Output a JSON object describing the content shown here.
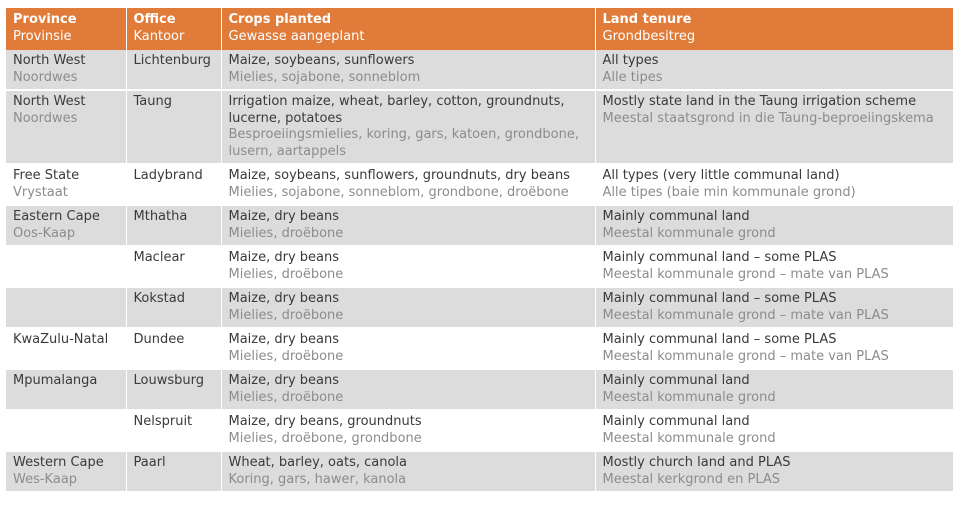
{
  "header": {
    "province_en": "Province",
    "province_af": "Provinsie",
    "office_en": "Office",
    "office_af": "Kantoor",
    "crops_en": "Crops planted",
    "crops_af": "Gewasse aangeplant",
    "tenure_en": "Land tenure",
    "tenure_af": "Grondbesitreg"
  },
  "rows": [
    {
      "province_en": "North West",
      "province_af": "Noordwes",
      "office": "Lichtenburg",
      "crops_en": "Maize, soybeans, sunflowers",
      "crops_af": "Mielies, sojabone, sonneblom",
      "tenure_en": "All types",
      "tenure_af": "Alle tipes"
    },
    {
      "province_en": "North West",
      "province_af": "Noordwes",
      "office": "Taung",
      "crops_en": "Irrigation maize, wheat, barley, cotton, groundnuts, lucerne, potatoes",
      "crops_af": "Besproeiingsmielies, koring, gars, katoen, grondbone, lusern, aartappels",
      "tenure_en": "Mostly state land in the Taung irrigation scheme",
      "tenure_af": "Meestal staatsgrond in die Taung-beproeiingskema"
    },
    {
      "province_en": "Free State",
      "province_af": "Vrystaat",
      "office": "Ladybrand",
      "crops_en": "Maize, soybeans, sunflowers, groundnuts, dry beans",
      "crops_af": "Mielies, sojabone, sonneblom, grondbone, droëbone",
      "tenure_en": "All types (very little communal land)",
      "tenure_af": "Alle tipes (baie min kommunale grond)"
    },
    {
      "province_en": "Eastern Cape",
      "province_af": "Oos-Kaap",
      "office": "Mthatha",
      "crops_en": "Maize, dry beans",
      "crops_af": "Mielies, droëbone",
      "tenure_en": "Mainly communal land",
      "tenure_af": "Meestal kommunale grond"
    },
    {
      "province_en": "",
      "province_af": "",
      "office": "Maclear",
      "crops_en": "Maize, dry beans",
      "crops_af": "Mielies, droëbone",
      "tenure_en": "Mainly communal land – some PLAS",
      "tenure_af": "Meestal kommunale grond – mate van PLAS"
    },
    {
      "province_en": "",
      "province_af": "",
      "office": "Kokstad",
      "crops_en": "Maize, dry beans",
      "crops_af": "Mielies, droëbone",
      "tenure_en": "Mainly communal land – some PLAS",
      "tenure_af": "Meestal kommunale grond – mate van PLAS"
    },
    {
      "province_en": "KwaZulu-Natal",
      "province_af": "",
      "office": "Dundee",
      "crops_en": "Maize, dry beans",
      "crops_af": "Mielies, droëbone",
      "tenure_en": "Mainly communal land – some PLAS",
      "tenure_af": "Meestal kommunale grond – mate van PLAS"
    },
    {
      "province_en": "Mpumalanga",
      "province_af": "",
      "office": "Louwsburg",
      "crops_en": "Maize, dry beans",
      "crops_af": "Mielies, droëbone",
      "tenure_en": "Mainly communal land",
      "tenure_af": "Meestal kommunale grond"
    },
    {
      "province_en": "",
      "province_af": "",
      "office": "Nelspruit",
      "crops_en": "Maize, dry beans, groundnuts",
      "crops_af": "Mielies, droëbone, grondbone",
      "tenure_en": "Mainly communal land",
      "tenure_af": "Meestal kommunale grond"
    },
    {
      "province_en": "Western Cape",
      "province_af": "Wes-Kaap",
      "office": "Paarl",
      "crops_en": "Wheat, barley, oats, canola",
      "crops_af": "Koring, gars, hawer, kanola",
      "tenure_en": "Mostly church land and PLAS",
      "tenure_af": "Meestal kerkgrond en PLAS"
    }
  ],
  "colors": {
    "header_bg": "#e07b39",
    "row_shade": "#dcdcdc",
    "row_plain": "#ffffff",
    "english_text": "#3a3a3a",
    "afrikaans_text": "#8c8c8c"
  }
}
